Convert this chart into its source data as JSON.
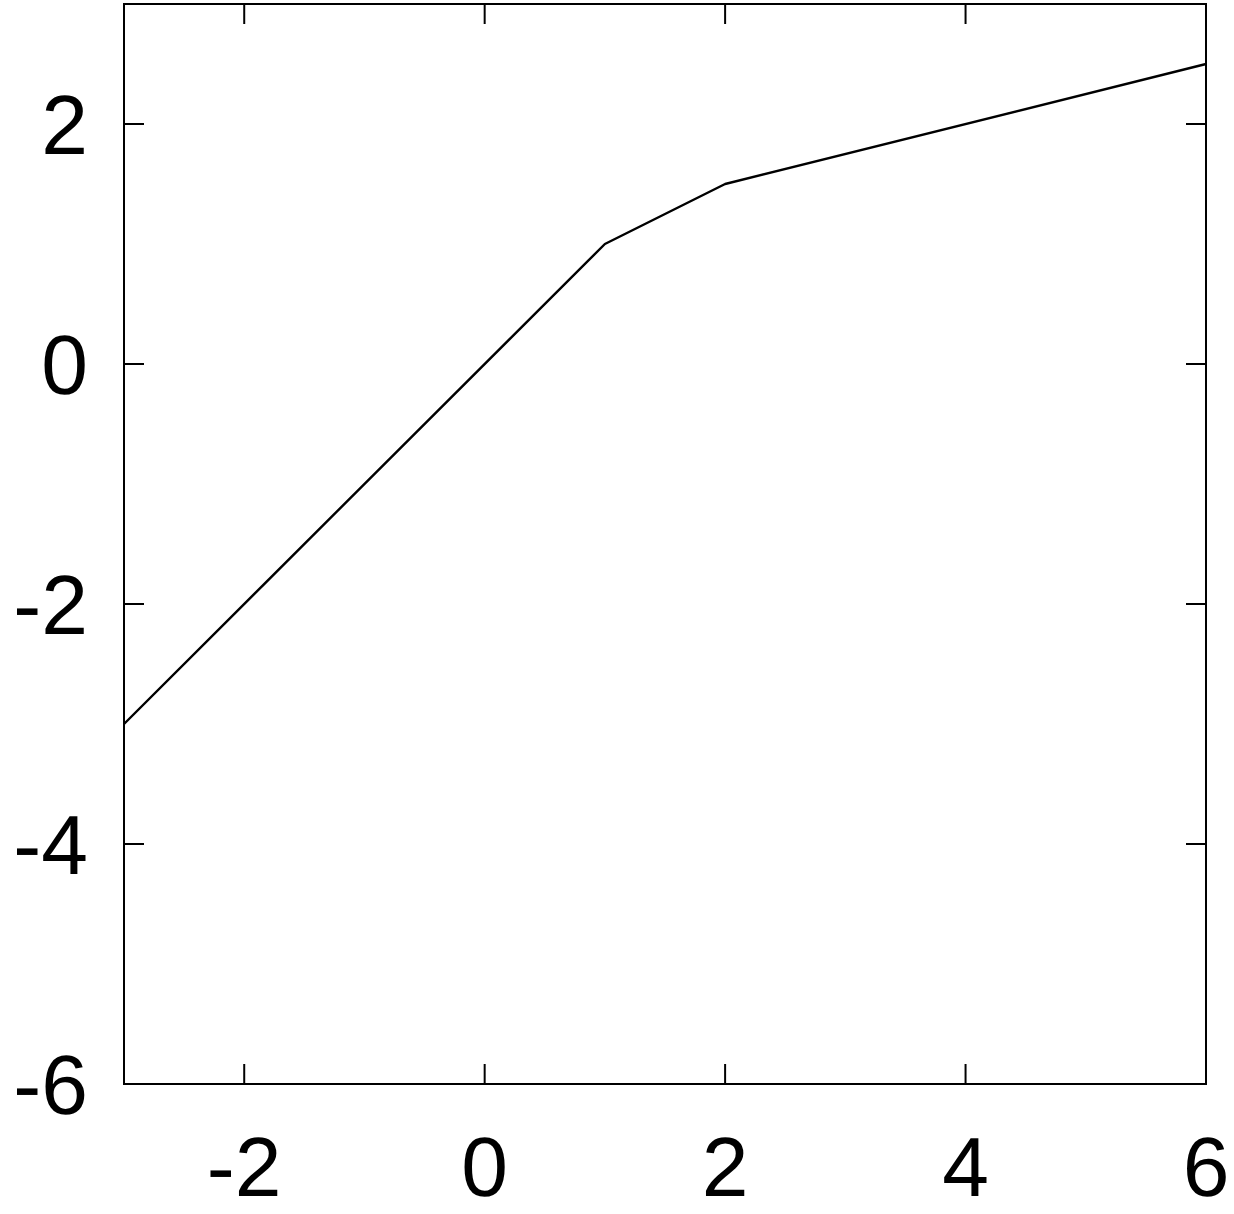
{
  "chart_data": {
    "type": "line",
    "x": [
      -3,
      1,
      2,
      6
    ],
    "values": [
      -3,
      1,
      1.5,
      2.5
    ],
    "color": "#000000",
    "xlim": [
      -3,
      6
    ],
    "ylim": [
      -6,
      3
    ],
    "xticks": [
      -2,
      0,
      2,
      4,
      6
    ],
    "yticks": [
      -6,
      -4,
      -2,
      0,
      2
    ],
    "grid": false,
    "marker": "none",
    "line_style": "solid"
  }
}
